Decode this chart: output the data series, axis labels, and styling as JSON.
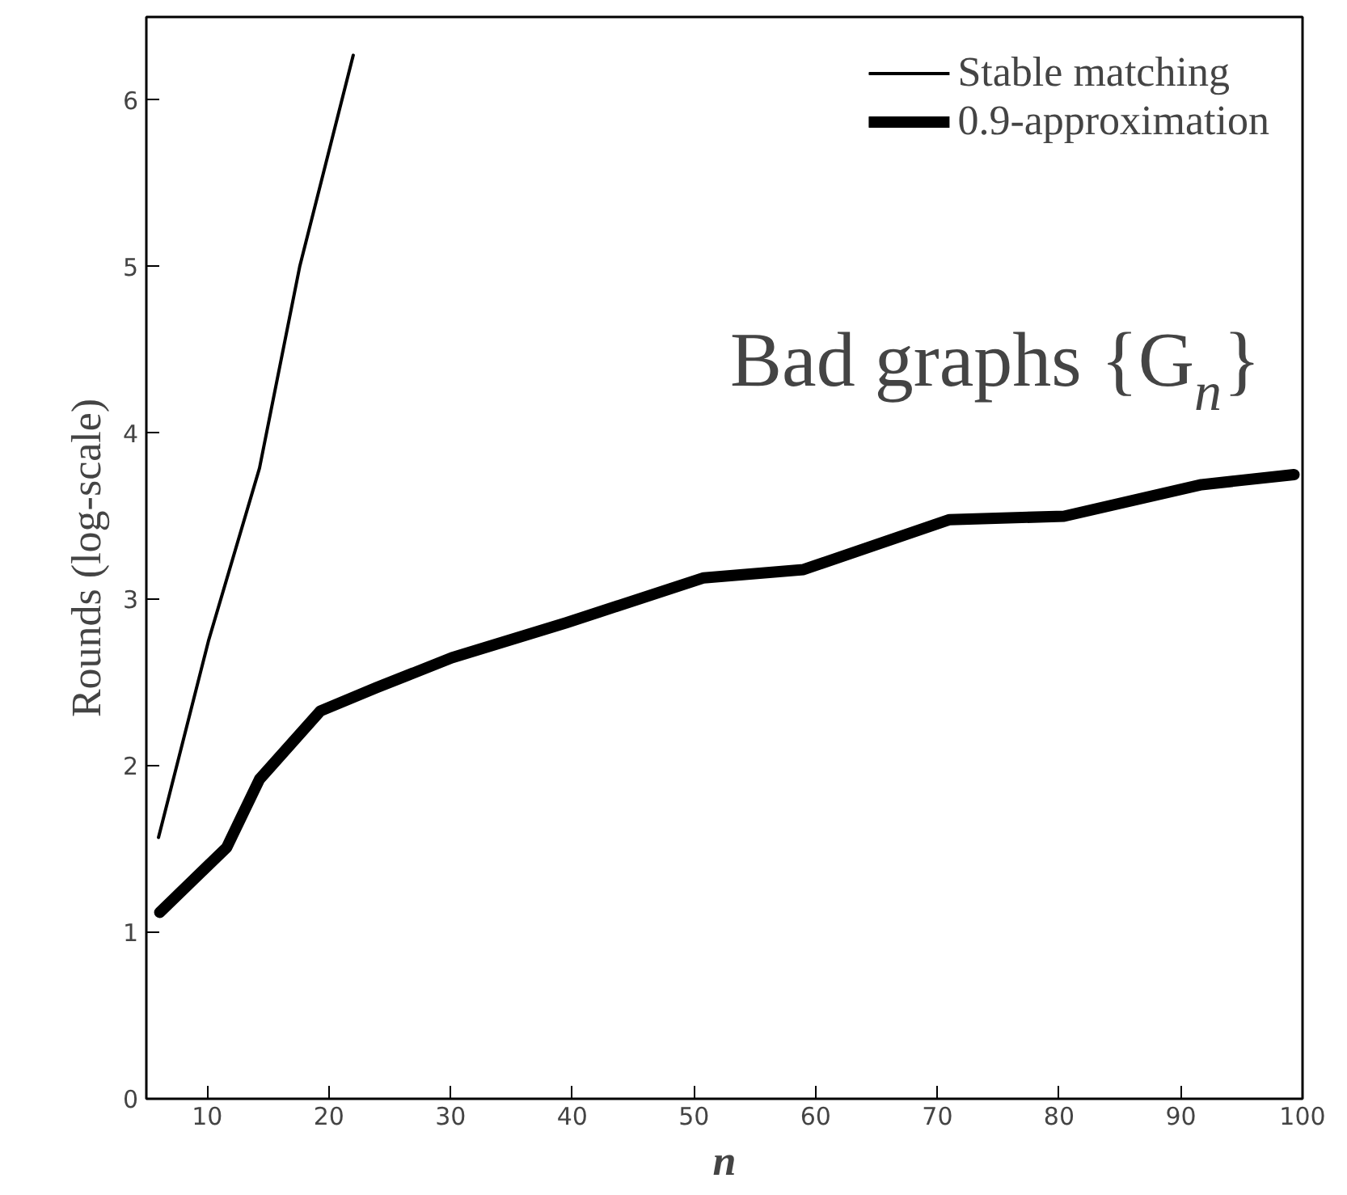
{
  "chart_data": {
    "type": "line",
    "xlabel": "n",
    "ylabel": "Rounds (log-scale)",
    "xlim": [
      5,
      100
    ],
    "ylim": [
      0,
      6.5
    ],
    "xticks": [
      10,
      20,
      30,
      40,
      50,
      60,
      70,
      80,
      90,
      100
    ],
    "yticks": [
      0,
      1,
      2,
      3,
      4,
      5,
      6
    ],
    "grid": false,
    "legend": "top right",
    "line_style": "solid",
    "marker": "none",
    "annotations": [
      "Bad graphs {G$_{n}$}"
    ],
    "series": [
      {
        "name": "Stable matching",
        "color": "#000000",
        "x": [
          6,
          10.1,
          14.3,
          17.6,
          22
        ],
        "values": [
          1.57,
          2.75,
          3.79,
          5.0,
          6.27
        ]
      },
      {
        "name": "0.9-approximation",
        "color": "#000000",
        "x": [
          6.1,
          11.6,
          14.3,
          19.3,
          23.9,
          30.1,
          39.5,
          50.8,
          59,
          71,
          80.4,
          91.7,
          99.3
        ],
        "values": [
          1.12,
          1.51,
          1.92,
          2.33,
          2.47,
          2.65,
          2.86,
          3.13,
          3.18,
          3.48,
          3.5,
          3.69,
          3.75
        ]
      }
    ]
  }
}
